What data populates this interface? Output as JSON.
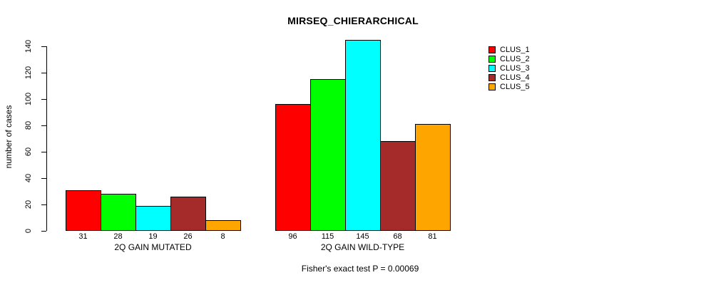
{
  "title": "MIRSEQ_CHIERARCHICAL",
  "footer": "Fisher's exact test P = 0.00069",
  "chart_data": {
    "type": "bar",
    "title": "MIRSEQ_CHIERARCHICAL",
    "xlabel": "",
    "ylabel": "number of cases",
    "ylim": [
      0,
      145
    ],
    "yticks": [
      0,
      20,
      40,
      60,
      80,
      100,
      120,
      140
    ],
    "grid": false,
    "legend_position": "right",
    "categories": [
      "2Q GAIN MUTATED",
      "2Q GAIN WILD-TYPE"
    ],
    "series": [
      {
        "name": "CLUS_1",
        "color": "#FF0000",
        "values": [
          31,
          96
        ]
      },
      {
        "name": "CLUS_2",
        "color": "#00FF00",
        "values": [
          28,
          115
        ]
      },
      {
        "name": "CLUS_3",
        "color": "#00FFFF",
        "values": [
          19,
          145
        ]
      },
      {
        "name": "CLUS_4",
        "color": "#A52A2A",
        "values": [
          26,
          68
        ]
      },
      {
        "name": "CLUS_5",
        "color": "#FFA500",
        "values": [
          8,
          81
        ]
      }
    ],
    "bar_value_labels": [
      [
        31,
        28,
        19,
        26,
        8
      ],
      [
        96,
        115,
        145,
        68,
        81
      ]
    ],
    "annotation": "Fisher's exact test P = 0.00069",
    "colors": {
      "background": "#FFFFFF",
      "axis": "#000000",
      "text": "#000000"
    }
  }
}
